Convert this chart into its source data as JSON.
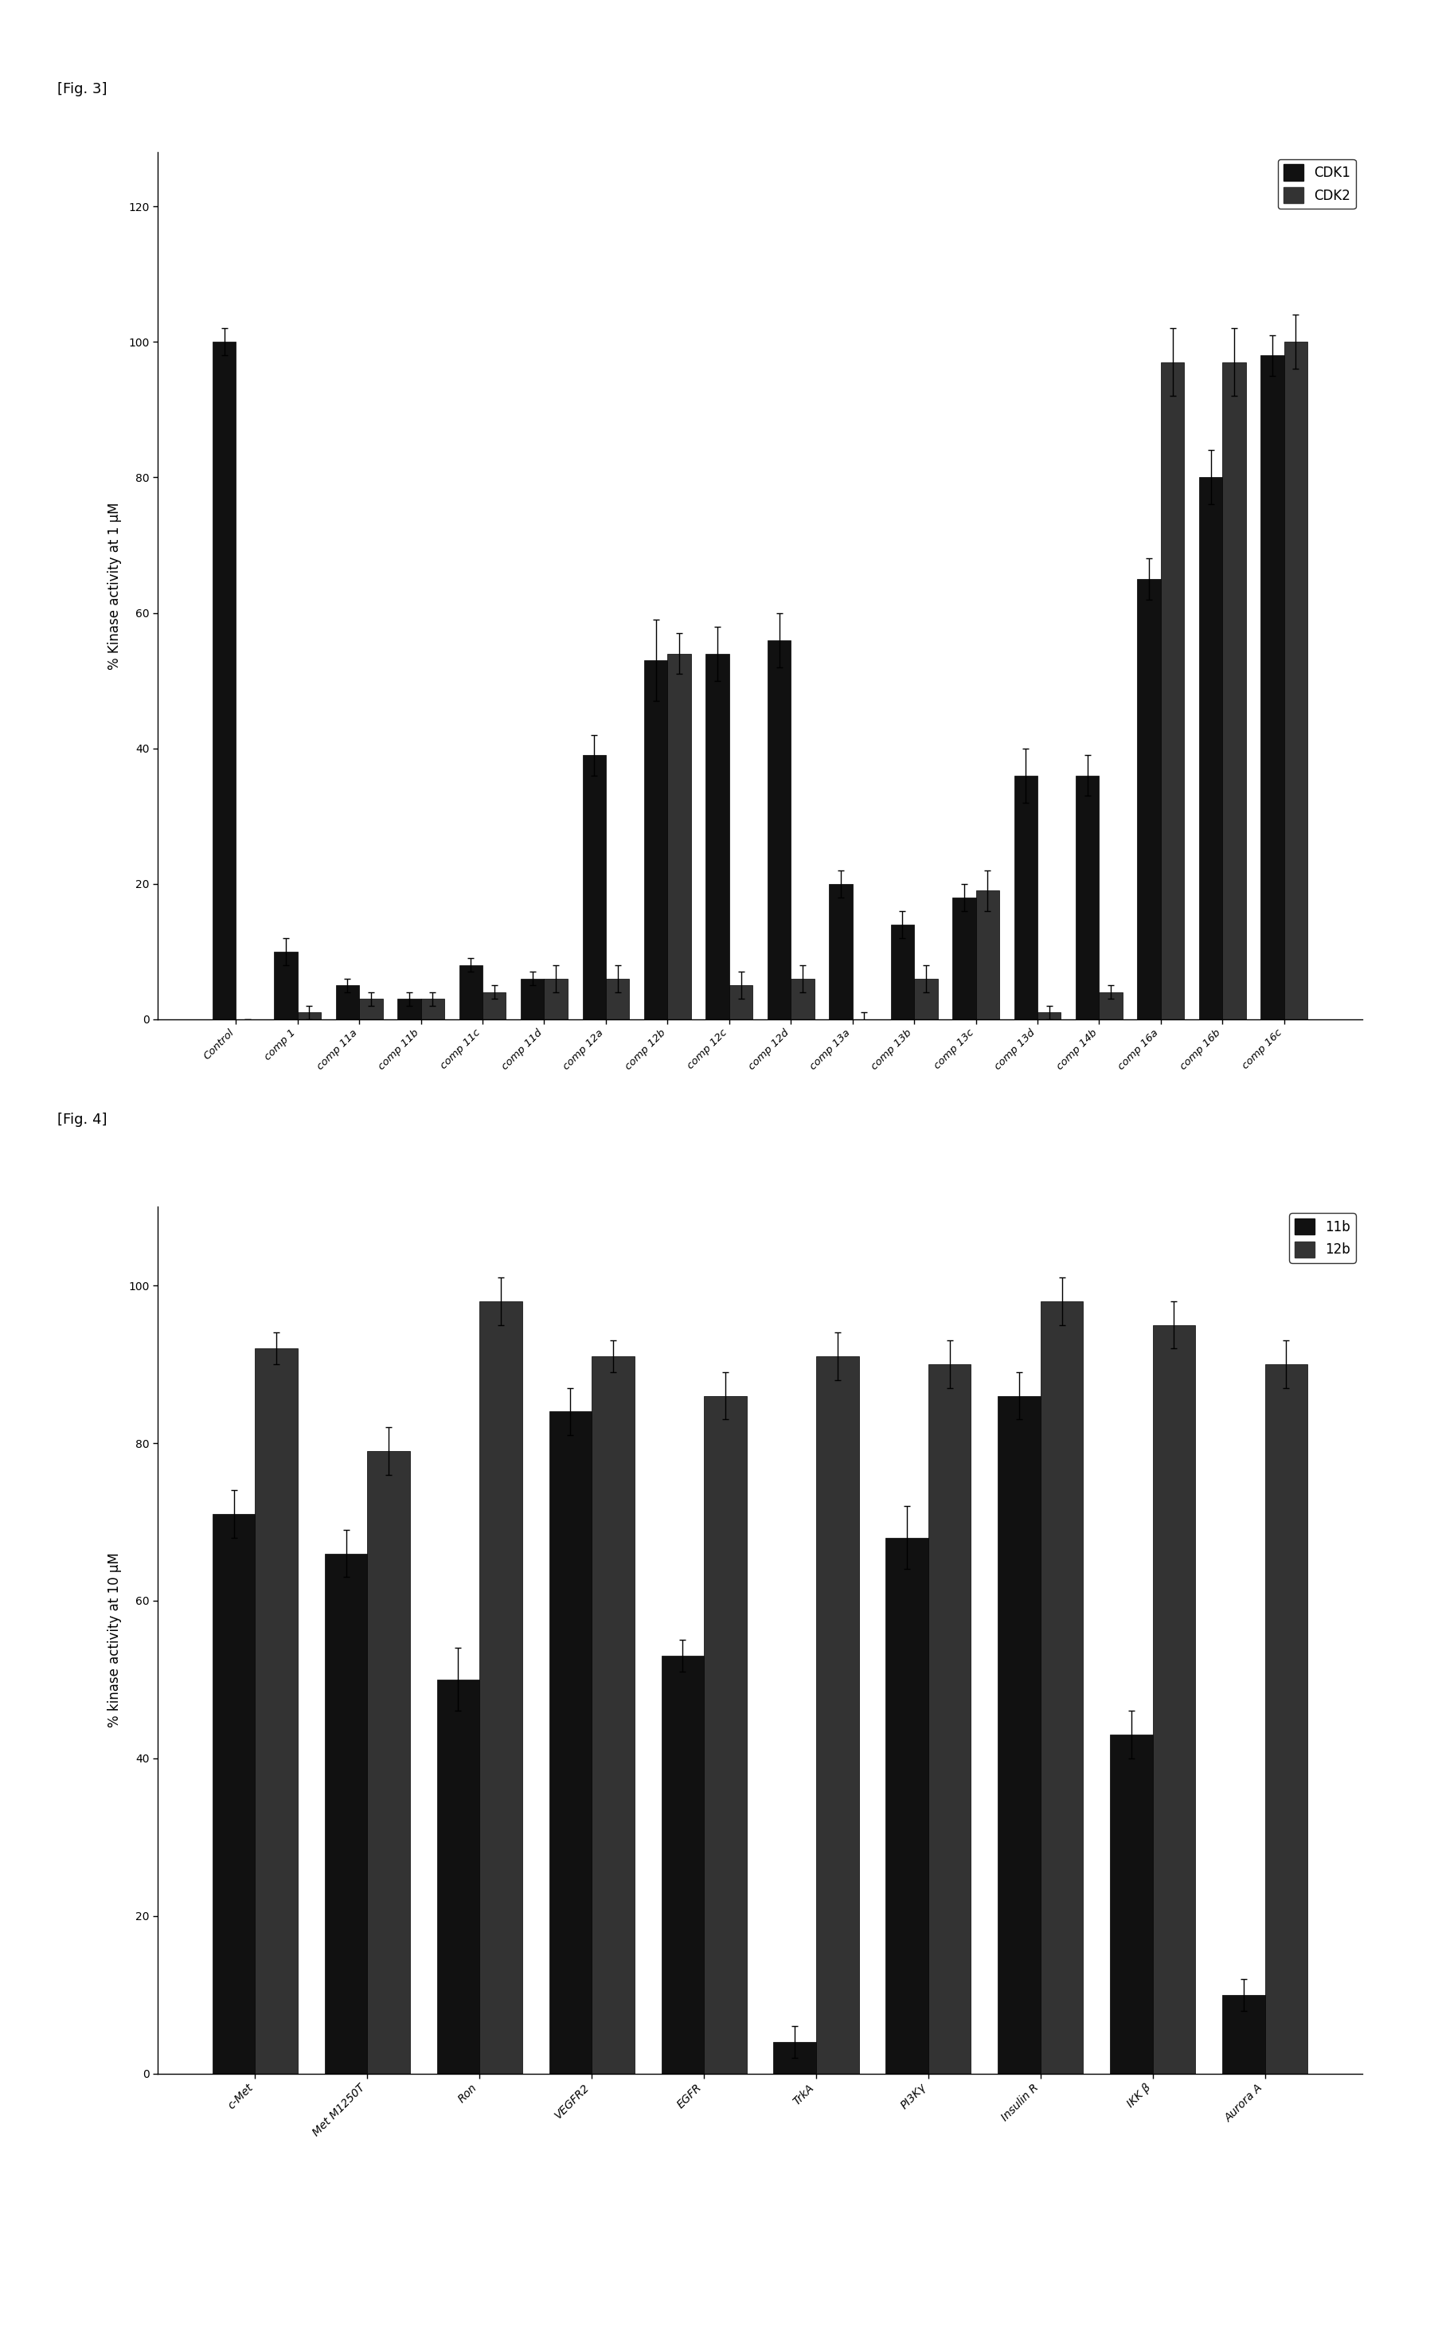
{
  "fig3": {
    "title": "[Fig. 3]",
    "ylabel": "% Kinase activity at 1 μM",
    "ylim": [
      0,
      128
    ],
    "yticks": [
      0,
      20,
      40,
      60,
      80,
      100,
      120
    ],
    "categories": [
      "Control",
      "comp 1",
      "comp 11a",
      "comp 11b",
      "comp 11c",
      "comp 11d",
      "comp 12a",
      "comp 12b",
      "comp 12c",
      "comp 12d",
      "comp 13a",
      "comp 13b",
      "comp 13c",
      "comp 13d",
      "comp 14b",
      "comp 16a",
      "comp 16b",
      "comp 16c"
    ],
    "cdk1_values": [
      100,
      10,
      5,
      3,
      8,
      6,
      39,
      53,
      54,
      56,
      20,
      14,
      18,
      36,
      36,
      65,
      80,
      98
    ],
    "cdk2_values": [
      0,
      1,
      3,
      3,
      4,
      6,
      6,
      54,
      5,
      6,
      0,
      6,
      19,
      1,
      4,
      97,
      97,
      100
    ],
    "cdk1_errors": [
      2,
      2,
      1,
      1,
      1,
      1,
      3,
      6,
      4,
      4,
      2,
      2,
      2,
      4,
      3,
      3,
      4,
      3
    ],
    "cdk2_errors": [
      0,
      1,
      1,
      1,
      1,
      2,
      2,
      3,
      2,
      2,
      1,
      2,
      3,
      1,
      1,
      5,
      5,
      4
    ],
    "legend_labels": [
      "CDK1",
      "CDK2"
    ],
    "cdk1_color": "#111111",
    "cdk2_color": "#333333",
    "bar_width": 0.38
  },
  "fig4": {
    "title": "[Fig. 4]",
    "ylabel": "% kinase activity at 10 μM",
    "ylim": [
      0,
      110
    ],
    "yticks": [
      0,
      20,
      40,
      60,
      80,
      100
    ],
    "categories": [
      "c-Met",
      "Met M1250T",
      "Ron",
      "VEGFR2",
      "EGFR",
      "TrkA",
      "PI3Kγ",
      "Insulin R",
      "IKK β",
      "Aurora A"
    ],
    "s11b_values": [
      71,
      66,
      50,
      84,
      53,
      4,
      68,
      86,
      43,
      10
    ],
    "s12b_values": [
      92,
      79,
      98,
      91,
      86,
      91,
      90,
      98,
      95,
      90
    ],
    "s11b_errors": [
      3,
      3,
      4,
      3,
      2,
      2,
      4,
      3,
      3,
      2
    ],
    "s12b_errors": [
      2,
      3,
      3,
      2,
      3,
      3,
      3,
      3,
      3,
      3
    ],
    "legend_labels": [
      "11b",
      "12b"
    ],
    "s11b_color": "#111111",
    "s12b_color": "#333333",
    "bar_width": 0.38
  }
}
